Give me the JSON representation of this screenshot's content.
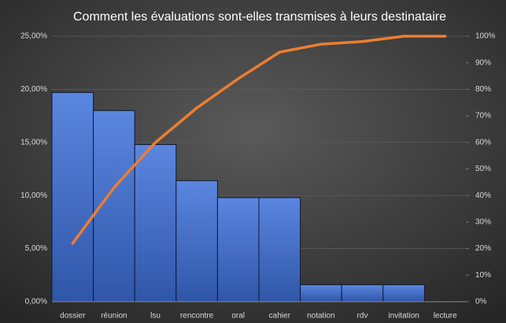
{
  "chart_data": {
    "type": "pareto",
    "title": "Comment les évaluations sont-elles transmises à leurs destinataire",
    "categories": [
      "dossier",
      "réunion",
      "lsu",
      "rencontre",
      "oral",
      "cahier",
      "notation",
      "rdv",
      "invitation",
      "lecture"
    ],
    "series": [
      {
        "color": "#4a76d0",
        "values": [
          19.7,
          18.0,
          14.8,
          11.4,
          9.8,
          9.8,
          1.6,
          1.6,
          1.6,
          0
        ]
      },
      {
        "color": "#ed7d31",
        "axis": "y2",
        "values": [
          22,
          43,
          60,
          73,
          84,
          94,
          97,
          98,
          100,
          100
        ]
      }
    ],
    "ylim": [
      0,
      25
    ],
    "yticks": [
      {
        "value": 0,
        "label": "0,00%"
      },
      {
        "value": 5,
        "label": "5,00%"
      },
      {
        "value": 10,
        "label": "10,00%"
      },
      {
        "value": 15,
        "label": "15,00%"
      },
      {
        "value": 20,
        "label": "20,00%"
      },
      {
        "value": 25,
        "label": "25,00%"
      }
    ],
    "y2lim": [
      0,
      100
    ],
    "y2ticks": [
      {
        "value": 0,
        "label": "0%"
      },
      {
        "value": 10,
        "label": "10%"
      },
      {
        "value": 20,
        "label": "20%"
      },
      {
        "value": 30,
        "label": "30%"
      },
      {
        "value": 40,
        "label": "40%"
      },
      {
        "value": 50,
        "label": "50%"
      },
      {
        "value": 60,
        "label": "60%"
      },
      {
        "value": 70,
        "label": "70%"
      },
      {
        "value": 80,
        "label": "80%"
      },
      {
        "value": 90,
        "label": "90%"
      },
      {
        "value": 100,
        "label": "100%"
      }
    ],
    "grid": true
  }
}
